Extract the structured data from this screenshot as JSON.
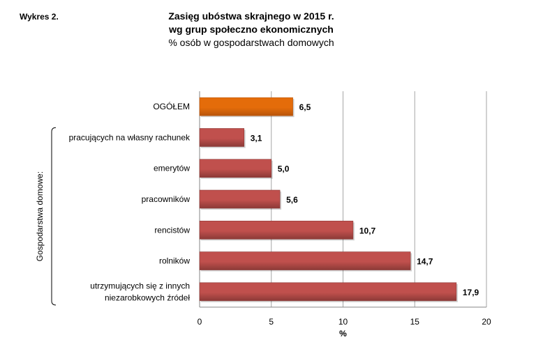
{
  "header": {
    "figure_label": "Wykres 2.",
    "title_line1": "Zasięg ubóstwa skrajnego w 2015 r.",
    "title_line2": "wg grup społeczno ekonomicznych",
    "subtitle": "% osób w gospodarstwach domowych"
  },
  "chart_data": {
    "type": "bar",
    "orientation": "horizontal",
    "title": "Zasięg ubóstwa skrajnego w 2015 r. wg grup społeczno ekonomicznych",
    "subtitle": "% osób w gospodarstwach domowych",
    "xlabel": "%",
    "ylabel": "",
    "group_label": "Gospodarstwa domowe:",
    "xlim": [
      0,
      20
    ],
    "xticks": [
      "0",
      "5",
      "10",
      "15",
      "20"
    ],
    "grid": true,
    "categories": [
      [
        "OGÓŁEM"
      ],
      [
        "pracujących na własny rachunek"
      ],
      [
        "emerytów"
      ],
      [
        "pracowników"
      ],
      [
        "rencistów"
      ],
      [
        "rolników"
      ],
      [
        "utrzymujących się z innych",
        "niezarobkowych źródeł"
      ]
    ],
    "values": [
      6.5,
      3.1,
      5.0,
      5.6,
      10.7,
      14.7,
      17.9
    ],
    "value_labels": [
      "6,5",
      "3,1",
      "5,0",
      "5,6",
      "10,7",
      "14,7",
      "17,9"
    ],
    "highlight_index": 0,
    "colors": {
      "highlight": "#E46C0A",
      "highlight_dark": "#B8540A",
      "bar": "#C0504D",
      "bar_dark": "#8C3A37",
      "grid": "#A6A6A6",
      "axis": "#868686"
    }
  }
}
